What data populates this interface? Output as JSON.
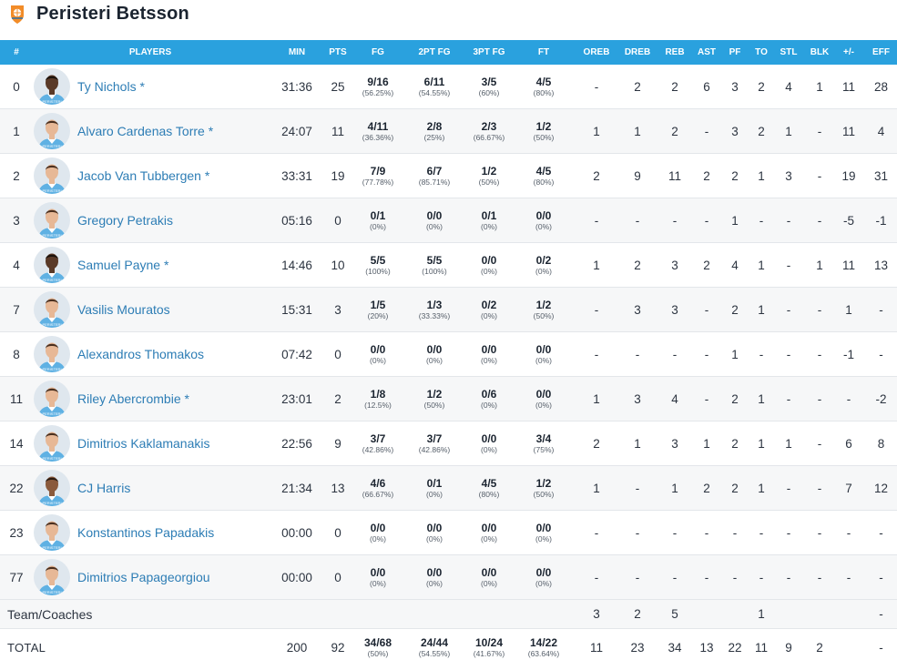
{
  "team": {
    "name": "Peristeri Betsson",
    "logo_icon": "team-logo-icon",
    "accent_color": "#2aa1de",
    "link_color": "#2d7db5"
  },
  "columns": [
    "#",
    "PLAYERS",
    "MIN",
    "PTS",
    "FG",
    "2PT FG",
    "3PT FG",
    "FT",
    "OREB",
    "DREB",
    "REB",
    "AST",
    "PF",
    "TO",
    "STL",
    "BLK",
    "+/-",
    "EFF"
  ],
  "players": [
    {
      "num": "0",
      "name": "Ty Nichols *",
      "skin": "dark",
      "min": "31:36",
      "pts": "25",
      "fg": "9/16",
      "fg_pct": "(56.25%)",
      "fg2": "6/11",
      "fg2_pct": "(54.55%)",
      "fg3": "3/5",
      "fg3_pct": "(60%)",
      "ft": "4/5",
      "ft_pct": "(80%)",
      "oreb": "-",
      "dreb": "2",
      "reb": "2",
      "ast": "6",
      "pf": "3",
      "to": "2",
      "stl": "4",
      "blk": "1",
      "pm": "11",
      "eff": "28"
    },
    {
      "num": "1",
      "name": "Alvaro Cardenas Torre *",
      "skin": "light",
      "min": "24:07",
      "pts": "11",
      "fg": "4/11",
      "fg_pct": "(36.36%)",
      "fg2": "2/8",
      "fg2_pct": "(25%)",
      "fg3": "2/3",
      "fg3_pct": "(66.67%)",
      "ft": "1/2",
      "ft_pct": "(50%)",
      "oreb": "1",
      "dreb": "1",
      "reb": "2",
      "ast": "-",
      "pf": "3",
      "to": "2",
      "stl": "1",
      "blk": "-",
      "pm": "11",
      "eff": "4"
    },
    {
      "num": "2",
      "name": "Jacob Van Tubbergen *",
      "skin": "light",
      "min": "33:31",
      "pts": "19",
      "fg": "7/9",
      "fg_pct": "(77.78%)",
      "fg2": "6/7",
      "fg2_pct": "(85.71%)",
      "fg3": "1/2",
      "fg3_pct": "(50%)",
      "ft": "4/5",
      "ft_pct": "(80%)",
      "oreb": "2",
      "dreb": "9",
      "reb": "11",
      "ast": "2",
      "pf": "2",
      "to": "1",
      "stl": "3",
      "blk": "-",
      "pm": "19",
      "eff": "31"
    },
    {
      "num": "3",
      "name": "Gregory Petrakis",
      "skin": "light",
      "min": "05:16",
      "pts": "0",
      "fg": "0/1",
      "fg_pct": "(0%)",
      "fg2": "0/0",
      "fg2_pct": "(0%)",
      "fg3": "0/1",
      "fg3_pct": "(0%)",
      "ft": "0/0",
      "ft_pct": "(0%)",
      "oreb": "-",
      "dreb": "-",
      "reb": "-",
      "ast": "-",
      "pf": "1",
      "to": "-",
      "stl": "-",
      "blk": "-",
      "pm": "-5",
      "eff": "-1"
    },
    {
      "num": "4",
      "name": "Samuel Payne *",
      "skin": "dark",
      "min": "14:46",
      "pts": "10",
      "fg": "5/5",
      "fg_pct": "(100%)",
      "fg2": "5/5",
      "fg2_pct": "(100%)",
      "fg3": "0/0",
      "fg3_pct": "(0%)",
      "ft": "0/2",
      "ft_pct": "(0%)",
      "oreb": "1",
      "dreb": "2",
      "reb": "3",
      "ast": "2",
      "pf": "4",
      "to": "1",
      "stl": "-",
      "blk": "1",
      "pm": "11",
      "eff": "13"
    },
    {
      "num": "7",
      "name": "Vasilis Mouratos",
      "skin": "light",
      "min": "15:31",
      "pts": "3",
      "fg": "1/5",
      "fg_pct": "(20%)",
      "fg2": "1/3",
      "fg2_pct": "(33.33%)",
      "fg3": "0/2",
      "fg3_pct": "(0%)",
      "ft": "1/2",
      "ft_pct": "(50%)",
      "oreb": "-",
      "dreb": "3",
      "reb": "3",
      "ast": "-",
      "pf": "2",
      "to": "1",
      "stl": "-",
      "blk": "-",
      "pm": "1",
      "eff": "-"
    },
    {
      "num": "8",
      "name": "Alexandros Thomakos",
      "skin": "light",
      "min": "07:42",
      "pts": "0",
      "fg": "0/0",
      "fg_pct": "(0%)",
      "fg2": "0/0",
      "fg2_pct": "(0%)",
      "fg3": "0/0",
      "fg3_pct": "(0%)",
      "ft": "0/0",
      "ft_pct": "(0%)",
      "oreb": "-",
      "dreb": "-",
      "reb": "-",
      "ast": "-",
      "pf": "1",
      "to": "-",
      "stl": "-",
      "blk": "-",
      "pm": "-1",
      "eff": "-"
    },
    {
      "num": "11",
      "name": "Riley Abercrombie *",
      "skin": "light",
      "min": "23:01",
      "pts": "2",
      "fg": "1/8",
      "fg_pct": "(12.5%)",
      "fg2": "1/2",
      "fg2_pct": "(50%)",
      "fg3": "0/6",
      "fg3_pct": "(0%)",
      "ft": "0/0",
      "ft_pct": "(0%)",
      "oreb": "1",
      "dreb": "3",
      "reb": "4",
      "ast": "-",
      "pf": "2",
      "to": "1",
      "stl": "-",
      "blk": "-",
      "pm": "-",
      "eff": "-2"
    },
    {
      "num": "14",
      "name": "Dimitrios Kaklamanakis",
      "skin": "light",
      "min": "22:56",
      "pts": "9",
      "fg": "3/7",
      "fg_pct": "(42.86%)",
      "fg2": "3/7",
      "fg2_pct": "(42.86%)",
      "fg3": "0/0",
      "fg3_pct": "(0%)",
      "ft": "3/4",
      "ft_pct": "(75%)",
      "oreb": "2",
      "dreb": "1",
      "reb": "3",
      "ast": "1",
      "pf": "2",
      "to": "1",
      "stl": "1",
      "blk": "-",
      "pm": "6",
      "eff": "8"
    },
    {
      "num": "22",
      "name": "CJ Harris",
      "skin": "medium",
      "min": "21:34",
      "pts": "13",
      "fg": "4/6",
      "fg_pct": "(66.67%)",
      "fg2": "0/1",
      "fg2_pct": "(0%)",
      "fg3": "4/5",
      "fg3_pct": "(80%)",
      "ft": "1/2",
      "ft_pct": "(50%)",
      "oreb": "1",
      "dreb": "-",
      "reb": "1",
      "ast": "2",
      "pf": "2",
      "to": "1",
      "stl": "-",
      "blk": "-",
      "pm": "7",
      "eff": "12"
    },
    {
      "num": "23",
      "name": "Konstantinos Papadakis",
      "skin": "light",
      "min": "00:00",
      "pts": "0",
      "fg": "0/0",
      "fg_pct": "(0%)",
      "fg2": "0/0",
      "fg2_pct": "(0%)",
      "fg3": "0/0",
      "fg3_pct": "(0%)",
      "ft": "0/0",
      "ft_pct": "(0%)",
      "oreb": "-",
      "dreb": "-",
      "reb": "-",
      "ast": "-",
      "pf": "-",
      "to": "-",
      "stl": "-",
      "blk": "-",
      "pm": "-",
      "eff": "-"
    },
    {
      "num": "77",
      "name": "Dimitrios Papageorgiou",
      "skin": "light",
      "min": "00:00",
      "pts": "0",
      "fg": "0/0",
      "fg_pct": "(0%)",
      "fg2": "0/0",
      "fg2_pct": "(0%)",
      "fg3": "0/0",
      "fg3_pct": "(0%)",
      "ft": "0/0",
      "ft_pct": "(0%)",
      "oreb": "-",
      "dreb": "-",
      "reb": "-",
      "ast": "-",
      "pf": "-",
      "to": "-",
      "stl": "-",
      "blk": "-",
      "pm": "-",
      "eff": "-"
    }
  ],
  "team_coaches": {
    "label": "Team/Coaches",
    "oreb": "3",
    "dreb": "2",
    "reb": "5",
    "to": "1",
    "eff": "-"
  },
  "total": {
    "label": "TOTAL",
    "min": "200",
    "pts": "92",
    "fg": "34/68",
    "fg_pct": "(50%)",
    "fg2": "24/44",
    "fg2_pct": "(54.55%)",
    "fg3": "10/24",
    "fg3_pct": "(41.67%)",
    "ft": "14/22",
    "ft_pct": "(63.64%)",
    "oreb": "11",
    "dreb": "23",
    "reb": "34",
    "ast": "13",
    "pf": "22",
    "to": "11",
    "stl": "9",
    "blk": "2",
    "pm": "",
    "eff": "-"
  }
}
